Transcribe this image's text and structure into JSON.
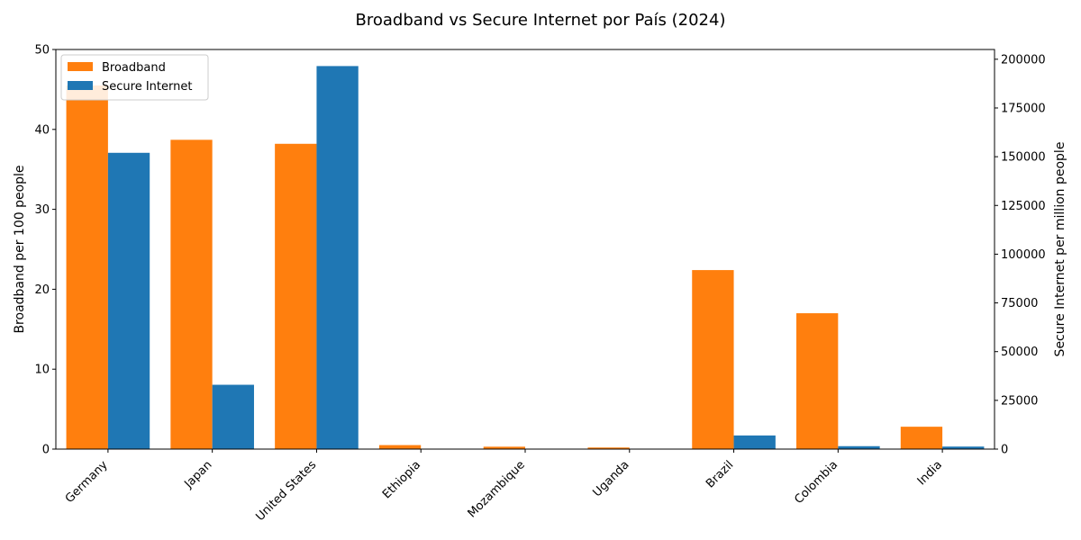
{
  "chart_data": {
    "type": "bar",
    "title": "Broadband vs Secure Internet por País (2024)",
    "categories": [
      "Germany",
      "Japan",
      "United States",
      "Ethiopia",
      "Mozambique",
      "Uganda",
      "Brazil",
      "Colombia",
      "India"
    ],
    "series": [
      {
        "name": "Broadband",
        "axis": "left",
        "color": "#ff7f0e",
        "values": [
          45.5,
          38.7,
          38.2,
          0.5,
          0.3,
          0.2,
          22.4,
          17.0,
          2.8
        ]
      },
      {
        "name": "Secure Internet",
        "axis": "right",
        "color": "#1f77b4",
        "values": [
          152000,
          33000,
          196500,
          40,
          20,
          30,
          7000,
          1500,
          1300
        ]
      }
    ],
    "ylabel_left": "Broadband per 100 people",
    "ylabel_right": "Secure Internet per million people",
    "ylim_left": [
      0,
      50
    ],
    "ylim_right": [
      0,
      205000
    ],
    "yticks_left": [
      0,
      10,
      20,
      30,
      40,
      50
    ],
    "yticks_right": [
      0,
      25000,
      50000,
      75000,
      100000,
      125000,
      150000,
      175000,
      200000
    ],
    "grid": false,
    "legend_position": "top-left"
  }
}
